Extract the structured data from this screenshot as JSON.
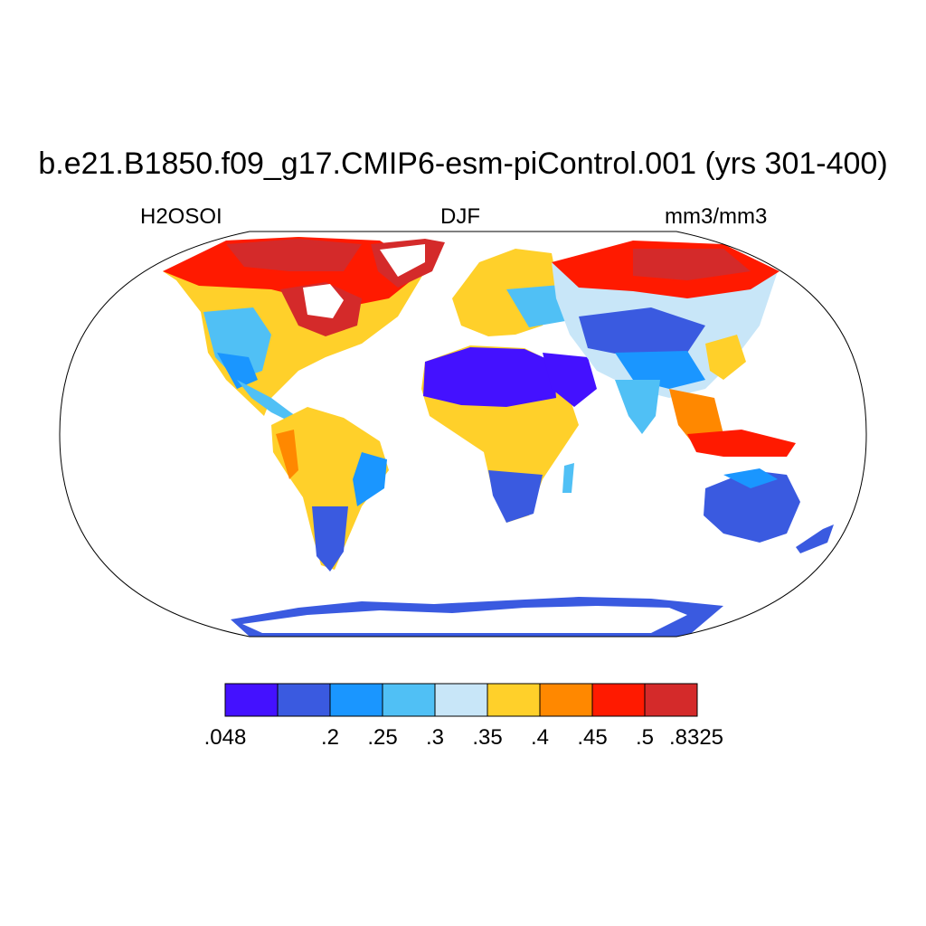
{
  "title": "b.e21.B1850.f09_g17.CMIP6-esm-piControl.001 (yrs 301-400)",
  "subtitle_left": "H2OSOI",
  "subtitle_center": "DJF",
  "subtitle_right": "mm3/mm3",
  "colorbar": {
    "colors": [
      "#4411ff",
      "#3a5ae0",
      "#1a96ff",
      "#50c0f5",
      "#c8e6f8",
      "#ffd02a",
      "#ff8800",
      "#ff1a00",
      "#d42a2a"
    ],
    "labels": [
      ".048",
      ".2",
      ".25",
      ".3",
      ".35",
      ".4",
      ".45",
      ".5",
      ".8325"
    ]
  }
}
